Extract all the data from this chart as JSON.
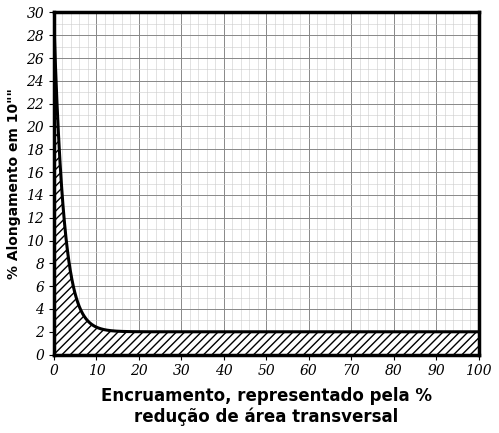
{
  "title": "",
  "xlabel": "Encruamento, representado pela %\nredução de área transversal",
  "ylabel": "% Alongamento em 10\"\"",
  "xlim": [
    0,
    100
  ],
  "ylim": [
    0,
    30
  ],
  "xticks": [
    0,
    10,
    20,
    30,
    40,
    50,
    60,
    70,
    80,
    90,
    100
  ],
  "yticks": [
    0,
    2,
    4,
    6,
    8,
    10,
    12,
    14,
    16,
    18,
    20,
    22,
    24,
    26,
    28,
    30
  ],
  "curve_a": 27.0,
  "curve_b": 0.42,
  "curve_c": 2.0,
  "background_color": "#ffffff",
  "grid_major_color": "#888888",
  "grid_minor_color": "#cccccc",
  "line_color": "#000000",
  "hatch_pattern": "////",
  "xlabel_fontsize": 12,
  "ylabel_fontsize": 10,
  "tick_fontsize": 10,
  "border_linewidth": 2.5
}
